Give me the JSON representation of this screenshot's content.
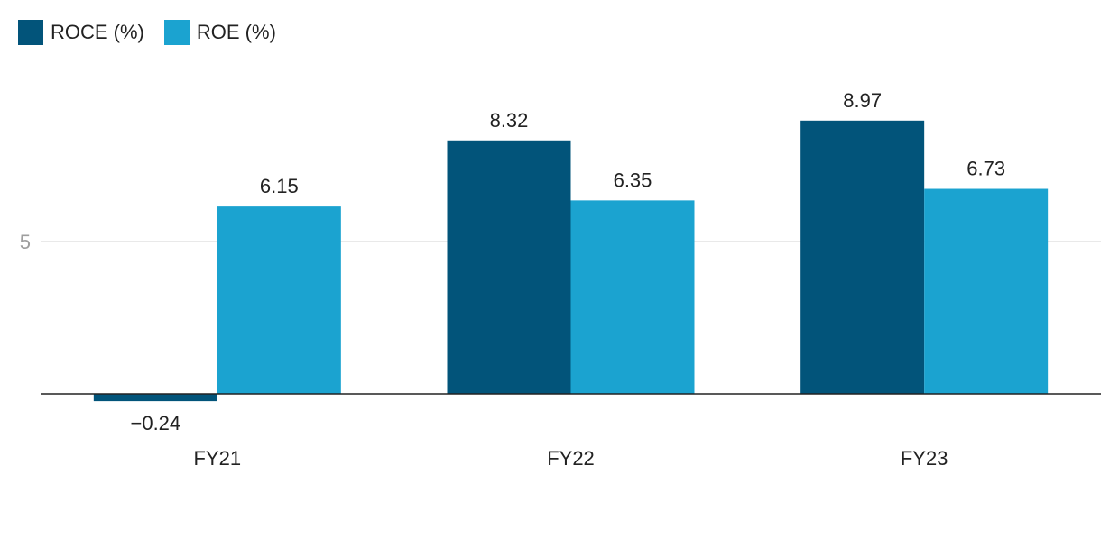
{
  "chart_data": {
    "type": "bar",
    "categories": [
      "FY21",
      "FY22",
      "FY23"
    ],
    "series": [
      {
        "name": "ROCE (%)",
        "values": [
          -0.24,
          8.32,
          8.97
        ],
        "labels": [
          "−0.24",
          "8.32",
          "8.97"
        ],
        "color": "#02547a"
      },
      {
        "name": "ROE (%)",
        "values": [
          6.15,
          6.35,
          6.73
        ],
        "labels": [
          "6.15",
          "6.35",
          "6.73"
        ],
        "color": "#1ba3d0"
      }
    ],
    "y_ticks": [
      5
    ],
    "ylim": [
      -0.5,
      10.3
    ],
    "grid": true,
    "legend_position": "top-left",
    "title": "",
    "xlabel": "",
    "ylabel": ""
  }
}
